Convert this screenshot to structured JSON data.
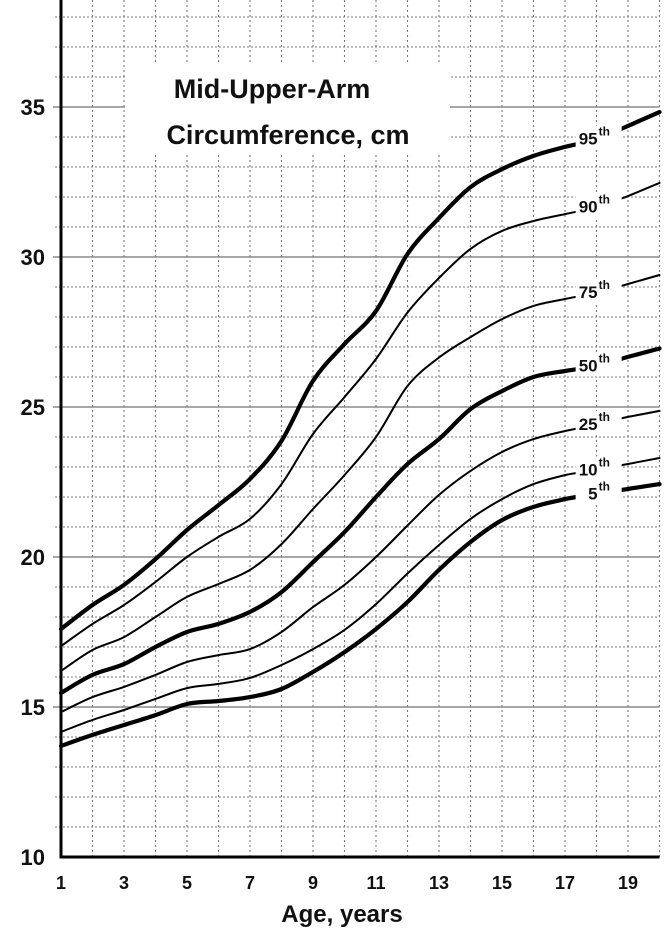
{
  "chart_data": {
    "type": "line",
    "title": "Mid-Upper-Arm Circumference, cm",
    "title_lines": [
      "Mid-Upper-Arm",
      "Circumference, cm"
    ],
    "xlabel": "Age, years",
    "ylabel": "",
    "xlim": [
      1,
      20
    ],
    "ylim": [
      10,
      38.4
    ],
    "x_ticks": [
      1,
      3,
      5,
      7,
      9,
      11,
      13,
      15,
      17,
      19
    ],
    "y_ticks": [
      10,
      15,
      20,
      25,
      30,
      35
    ],
    "grid": {
      "major_y_every": 5,
      "minor_y_every": 1,
      "x_every": 1,
      "minor_style": "dotted",
      "major_style": "solid"
    },
    "x": [
      1,
      2,
      3,
      4,
      5,
      6,
      7,
      8,
      9,
      10,
      11,
      12,
      13,
      14,
      15,
      16,
      17,
      18,
      19,
      20
    ],
    "series": [
      {
        "name": "95th",
        "label_main": "95",
        "label_sup": "th",
        "thick": true,
        "values": [
          17.6,
          18.4,
          19.07,
          19.93,
          20.9,
          21.73,
          22.6,
          23.87,
          25.87,
          27.1,
          28.2,
          30.1,
          31.3,
          32.33,
          32.93,
          33.37,
          33.67,
          33.9,
          34.37,
          34.83
        ]
      },
      {
        "name": "90th",
        "label_main": "90",
        "label_sup": "th",
        "thick": false,
        "values": [
          17.03,
          17.77,
          18.4,
          19.17,
          20.0,
          20.67,
          21.27,
          22.43,
          24.1,
          25.33,
          26.6,
          28.15,
          29.3,
          30.27,
          30.87,
          31.2,
          31.43,
          31.65,
          32.03,
          32.47
        ]
      },
      {
        "name": "75th",
        "label_main": "75",
        "label_sup": "th",
        "thick": false,
        "values": [
          16.2,
          16.9,
          17.33,
          18.0,
          18.67,
          19.1,
          19.57,
          20.43,
          21.6,
          22.73,
          24.0,
          25.7,
          26.65,
          27.33,
          27.93,
          28.37,
          28.6,
          28.8,
          29.1,
          29.4
        ]
      },
      {
        "name": "50th",
        "label_main": "50",
        "label_sup": "th",
        "thick": true,
        "values": [
          15.47,
          16.07,
          16.43,
          17.0,
          17.5,
          17.77,
          18.17,
          18.83,
          19.83,
          20.83,
          22.0,
          23.1,
          23.93,
          24.93,
          25.53,
          26.0,
          26.2,
          26.35,
          26.67,
          26.95
        ]
      },
      {
        "name": "25th",
        "label_main": "25",
        "label_sup": "th",
        "thick": false,
        "values": [
          14.83,
          15.33,
          15.67,
          16.07,
          16.5,
          16.73,
          16.93,
          17.5,
          18.33,
          19.07,
          20.0,
          21.05,
          22.07,
          22.87,
          23.5,
          23.93,
          24.2,
          24.4,
          24.67,
          24.87
        ]
      },
      {
        "name": "10th",
        "label_main": "10",
        "label_sup": "th",
        "thick": false,
        "values": [
          14.17,
          14.57,
          14.9,
          15.27,
          15.63,
          15.77,
          15.97,
          16.4,
          16.93,
          17.57,
          18.43,
          19.45,
          20.4,
          21.27,
          21.93,
          22.43,
          22.73,
          22.9,
          23.1,
          23.3
        ]
      },
      {
        "name": "5th",
        "label_main": "5",
        "label_sup": "th",
        "thick": true,
        "values": [
          13.7,
          14.07,
          14.4,
          14.73,
          15.1,
          15.2,
          15.33,
          15.6,
          16.17,
          16.83,
          17.6,
          18.5,
          19.57,
          20.5,
          21.23,
          21.67,
          21.93,
          22.1,
          22.27,
          22.43
        ]
      }
    ],
    "legend_position": "inline-right"
  },
  "colors": {
    "line": "#000000",
    "major_grid": "#8a8a8a",
    "minor_grid": "#7a7a7a",
    "axis": "#000000",
    "text": "#111111",
    "background": "#ffffff"
  }
}
